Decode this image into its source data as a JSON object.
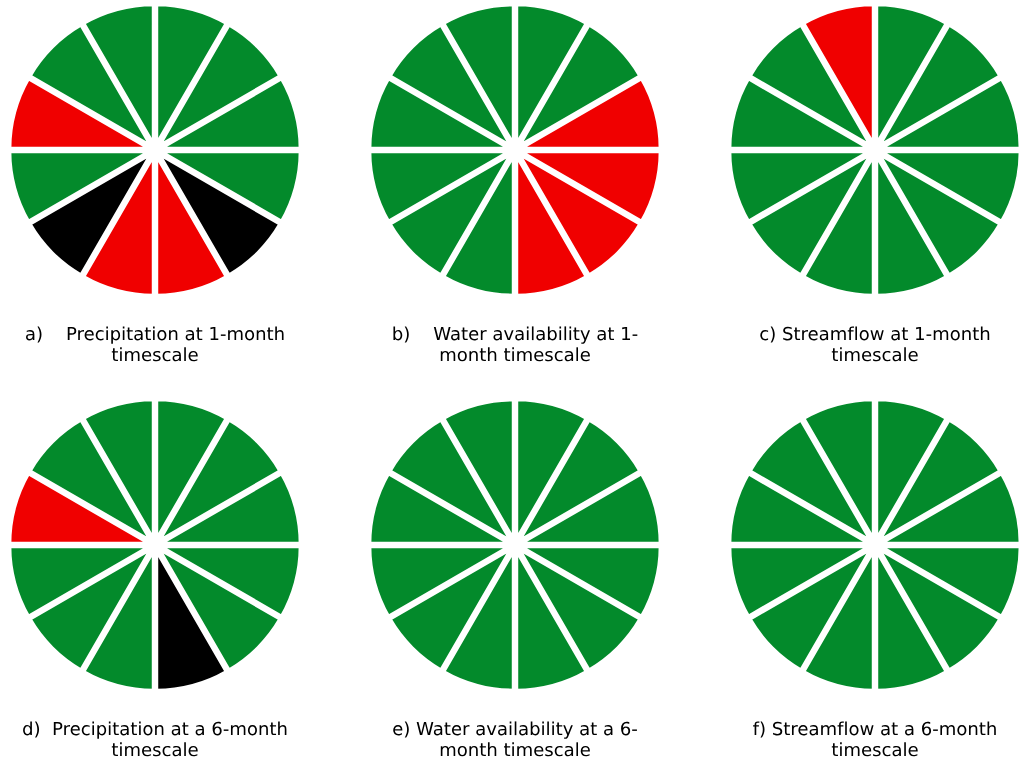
{
  "chart_data": [
    {
      "type": "pie",
      "title": "a)    Precipitation at 1-month\ntimescale",
      "categories": [
        null,
        null,
        null,
        null,
        null,
        null,
        null,
        null,
        null,
        null,
        null,
        null
      ],
      "values": [
        8.3333,
        8.3333,
        8.3333,
        8.3333,
        8.3333,
        8.3333,
        8.3333,
        8.3333,
        8.3333,
        8.3333,
        8.3333,
        8.3333
      ],
      "colors": [
        "#038a2b",
        "#038a2b",
        "#038a2b",
        "#038a2b",
        "#000000",
        "#f00000",
        "#f00000",
        "#000000",
        "#038a2b",
        "#f00000",
        "#038a2b",
        "#038a2b"
      ]
    },
    {
      "type": "pie",
      "title": "b)    Water availability at 1-\nmonth timescale",
      "categories": [
        null,
        null,
        null,
        null,
        null,
        null,
        null,
        null,
        null,
        null,
        null,
        null
      ],
      "values": [
        8.3333,
        8.3333,
        8.3333,
        8.3333,
        8.3333,
        8.3333,
        8.3333,
        8.3333,
        8.3333,
        8.3333,
        8.3333,
        8.3333
      ],
      "colors": [
        "#038a2b",
        "#038a2b",
        "#f00000",
        "#f00000",
        "#f00000",
        "#f00000",
        "#038a2b",
        "#038a2b",
        "#038a2b",
        "#038a2b",
        "#038a2b",
        "#038a2b"
      ]
    },
    {
      "type": "pie",
      "title": "c) Streamflow at 1-month\ntimescale",
      "categories": [
        null,
        null,
        null,
        null,
        null,
        null,
        null,
        null,
        null,
        null,
        null,
        null
      ],
      "values": [
        8.3333,
        8.3333,
        8.3333,
        8.3333,
        8.3333,
        8.3333,
        8.3333,
        8.3333,
        8.3333,
        8.3333,
        8.3333,
        8.3333
      ],
      "colors": [
        "#038a2b",
        "#038a2b",
        "#038a2b",
        "#038a2b",
        "#038a2b",
        "#038a2b",
        "#038a2b",
        "#038a2b",
        "#038a2b",
        "#038a2b",
        "#038a2b",
        "#f00000"
      ]
    },
    {
      "type": "pie",
      "title": "d)  Precipitation at a 6-month\ntimescale",
      "categories": [
        null,
        null,
        null,
        null,
        null,
        null,
        null,
        null,
        null,
        null,
        null,
        null
      ],
      "values": [
        8.3333,
        8.3333,
        8.3333,
        8.3333,
        8.3333,
        8.3333,
        8.3333,
        8.3333,
        8.3333,
        8.3333,
        8.3333,
        8.3333
      ],
      "colors": [
        "#038a2b",
        "#038a2b",
        "#038a2b",
        "#038a2b",
        "#038a2b",
        "#000000",
        "#038a2b",
        "#038a2b",
        "#038a2b",
        "#f00000",
        "#038a2b",
        "#038a2b"
      ]
    },
    {
      "type": "pie",
      "title": "e) Water availability at a 6-\nmonth timescale",
      "categories": [
        null,
        null,
        null,
        null,
        null,
        null,
        null,
        null,
        null,
        null,
        null,
        null
      ],
      "values": [
        8.3333,
        8.3333,
        8.3333,
        8.3333,
        8.3333,
        8.3333,
        8.3333,
        8.3333,
        8.3333,
        8.3333,
        8.3333,
        8.3333
      ],
      "colors": [
        "#038a2b",
        "#038a2b",
        "#038a2b",
        "#038a2b",
        "#038a2b",
        "#038a2b",
        "#038a2b",
        "#038a2b",
        "#038a2b",
        "#038a2b",
        "#038a2b",
        "#038a2b"
      ]
    },
    {
      "type": "pie",
      "title": "f) Streamflow at a 6-month\ntimescale",
      "categories": [
        null,
        null,
        null,
        null,
        null,
        null,
        null,
        null,
        null,
        null,
        null,
        null
      ],
      "values": [
        8.3333,
        8.3333,
        8.3333,
        8.3333,
        8.3333,
        8.3333,
        8.3333,
        8.3333,
        8.3333,
        8.3333,
        8.3333,
        8.3333
      ],
      "colors": [
        "#038a2b",
        "#038a2b",
        "#038a2b",
        "#038a2b",
        "#038a2b",
        "#038a2b",
        "#038a2b",
        "#038a2b",
        "#038a2b",
        "#038a2b",
        "#038a2b",
        "#038a2b"
      ]
    }
  ]
}
